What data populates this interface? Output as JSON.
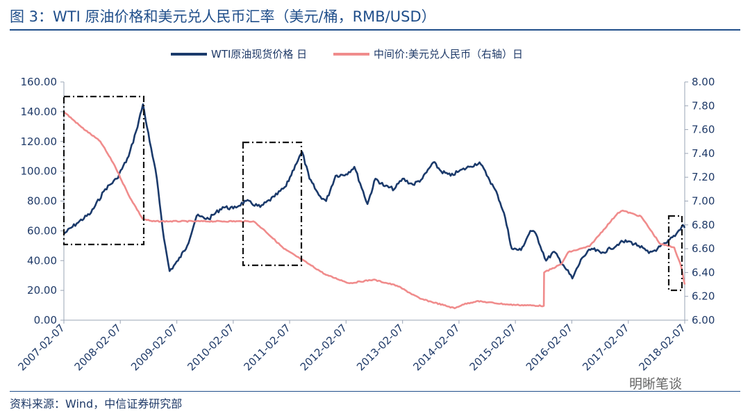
{
  "figure": {
    "title": "图 3：WTI 原油价格和美元兑人民币汇率（美元/桶，RMB/USD）",
    "source": "资料来源：Wind，中信证券研究部",
    "watermark": "明晰笔谈"
  },
  "chart_data": {
    "type": "line",
    "title": "",
    "x_tick_labels": [
      "2007-02-07",
      "2008-02-07",
      "2009-02-07",
      "2010-02-07",
      "2011-02-07",
      "2012-02-07",
      "2013-02-07",
      "2014-02-07",
      "2015-02-07",
      "2016-02-07",
      "2017-02-07",
      "2018-02-07"
    ],
    "x_range": [
      "2007-02-07",
      "2018-02-07"
    ],
    "y_left": {
      "range": [
        0,
        160
      ],
      "ticks": [
        "0.00",
        "20.00",
        "40.00",
        "60.00",
        "80.00",
        "100.00",
        "120.00",
        "140.00",
        "160.00"
      ]
    },
    "y_right": {
      "range": [
        6.0,
        8.0
      ],
      "ticks": [
        "6.00",
        "6.20",
        "6.40",
        "6.60",
        "6.80",
        "7.00",
        "7.20",
        "7.40",
        "7.60",
        "7.80",
        "8.00"
      ]
    },
    "legend_position": "top",
    "grid": false,
    "series": [
      {
        "name": "WTI原油现货价格 日",
        "axis": "left",
        "color": "#1b3a6b",
        "x": [
          "2007-02-07",
          "2007-05-01",
          "2007-08-01",
          "2007-11-01",
          "2008-01-15",
          "2008-04-01",
          "2008-05-20",
          "2008-07-03",
          "2008-08-15",
          "2008-10-01",
          "2008-11-15",
          "2008-12-22",
          "2009-02-15",
          "2009-04-15",
          "2009-06-15",
          "2009-09-01",
          "2009-12-01",
          "2010-02-07",
          "2010-05-01",
          "2010-08-01",
          "2010-11-01",
          "2011-01-15",
          "2011-03-15",
          "2011-04-29",
          "2011-06-15",
          "2011-08-15",
          "2011-10-01",
          "2011-12-01",
          "2012-02-07",
          "2012-04-01",
          "2012-06-25",
          "2012-08-15",
          "2012-10-15",
          "2012-12-15",
          "2013-02-07",
          "2013-04-15",
          "2013-06-15",
          "2013-08-25",
          "2013-10-15",
          "2013-12-15",
          "2014-02-07",
          "2014-04-15",
          "2014-06-20",
          "2014-08-15",
          "2014-10-15",
          "2014-11-25",
          "2015-01-15",
          "2015-03-15",
          "2015-05-15",
          "2015-06-20",
          "2015-08-25",
          "2015-10-15",
          "2015-12-15",
          "2016-02-11",
          "2016-04-15",
          "2016-06-15",
          "2016-08-15",
          "2016-10-15",
          "2016-12-15",
          "2017-02-07",
          "2017-04-15",
          "2017-06-20",
          "2017-08-15",
          "2017-10-15",
          "2017-12-15",
          "2018-01-25",
          "2018-02-07"
        ],
        "values": [
          58,
          65,
          72,
          88,
          95,
          110,
          127,
          145,
          120,
          95,
          55,
          33,
          40,
          50,
          70,
          68,
          76,
          75,
          80,
          76,
          83,
          90,
          104,
          113,
          95,
          84,
          80,
          97,
          98,
          103,
          78,
          95,
          90,
          88,
          95,
          91,
          95,
          106,
          100,
          97,
          100,
          103,
          106,
          96,
          84,
          72,
          48,
          47,
          60,
          58,
          40,
          46,
          37,
          28,
          42,
          48,
          45,
          48,
          52,
          53,
          50,
          45,
          48,
          52,
          58,
          64,
          62
        ]
      },
      {
        "name": "中间价:美元兑人民币（右轴）日",
        "axis": "right",
        "color": "#f08c8c",
        "x": [
          "2007-02-07",
          "2007-06-01",
          "2007-10-01",
          "2008-01-01",
          "2008-04-01",
          "2008-07-01",
          "2008-09-01",
          "2009-06-01",
          "2010-06-18",
          "2010-09-01",
          "2011-01-01",
          "2011-06-01",
          "2011-10-01",
          "2012-03-01",
          "2012-08-01",
          "2013-01-01",
          "2013-06-01",
          "2014-01-10",
          "2014-03-01",
          "2014-06-01",
          "2015-01-01",
          "2015-08-10",
          "2015-08-12",
          "2015-12-01",
          "2016-01-15",
          "2016-06-01",
          "2016-12-01",
          "2017-01-01",
          "2017-05-01",
          "2017-09-01",
          "2017-12-01",
          "2018-01-15",
          "2018-02-07"
        ],
        "values": [
          7.75,
          7.62,
          7.5,
          7.3,
          7.05,
          6.85,
          6.83,
          6.83,
          6.83,
          6.75,
          6.6,
          6.48,
          6.38,
          6.31,
          6.34,
          6.29,
          6.18,
          6.1,
          6.13,
          6.16,
          6.13,
          6.12,
          6.4,
          6.47,
          6.57,
          6.62,
          6.9,
          6.92,
          6.87,
          6.64,
          6.61,
          6.45,
          6.3
        ]
      }
    ]
  }
}
